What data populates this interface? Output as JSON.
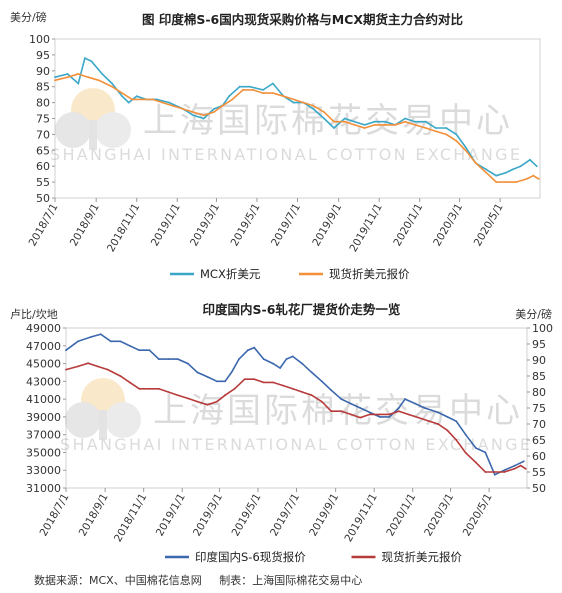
{
  "watermark": {
    "cn": "上海国际棉花交易中心",
    "en": "SHANGHAI INTERNATIONAL COTTON EXCHANGE"
  },
  "footer": {
    "source": "数据来源：MCX、中国棉花信息网",
    "maker": "制表：上海国际棉花交易中心"
  },
  "colors": {
    "blue": "#3aa7c8",
    "orange": "#f2903a",
    "navy": "#3b67ad",
    "red": "#b83b3b"
  },
  "chart_data": [
    {
      "type": "line",
      "title": "图 印度棉S-6国内现货采购价格与MCX期货主力合约对比",
      "ylabel": "美分/磅",
      "ylim": [
        50,
        100
      ],
      "yticks": [
        50,
        55,
        60,
        65,
        70,
        75,
        80,
        85,
        90,
        95,
        100
      ],
      "xlim": [
        "2018-07-01",
        "2020-06-30"
      ],
      "xticks": [
        "2018/7/1",
        "2018/9/1",
        "2018/11/1",
        "2019/1/1",
        "2019/3/1",
        "2019/5/1",
        "2019/7/1",
        "2019/9/1",
        "2019/11/1",
        "2020/1/1",
        "2020/3/1",
        "2020/5/1"
      ],
      "legend_position": "bottom",
      "series": [
        {
          "name": "MCX折美元",
          "color": "#3aa7c8",
          "points": [
            [
              "2018-07-01",
              88
            ],
            [
              "2018-07-20",
              89
            ],
            [
              "2018-08-05",
              86
            ],
            [
              "2018-08-15",
              94
            ],
            [
              "2018-08-25",
              93
            ],
            [
              "2018-09-10",
              89
            ],
            [
              "2018-09-25",
              86
            ],
            [
              "2018-10-10",
              82
            ],
            [
              "2018-10-20",
              80
            ],
            [
              "2018-11-01",
              82
            ],
            [
              "2018-11-15",
              81
            ],
            [
              "2018-12-01",
              81
            ],
            [
              "2018-12-20",
              80
            ],
            [
              "2019-01-10",
              78
            ],
            [
              "2019-01-25",
              76
            ],
            [
              "2019-02-10",
              75
            ],
            [
              "2019-02-25",
              78
            ],
            [
              "2019-03-10",
              79
            ],
            [
              "2019-03-20",
              82
            ],
            [
              "2019-04-05",
              85
            ],
            [
              "2019-04-20",
              85
            ],
            [
              "2019-05-10",
              84
            ],
            [
              "2019-05-25",
              86
            ],
            [
              "2019-06-10",
              82
            ],
            [
              "2019-06-25",
              80
            ],
            [
              "2019-07-10",
              80
            ],
            [
              "2019-07-25",
              78
            ],
            [
              "2019-08-10",
              75
            ],
            [
              "2019-08-25",
              72
            ],
            [
              "2019-09-10",
              75
            ],
            [
              "2019-09-25",
              74
            ],
            [
              "2019-10-10",
              73
            ],
            [
              "2019-10-25",
              74
            ],
            [
              "2019-11-10",
              74
            ],
            [
              "2019-11-25",
              73
            ],
            [
              "2019-12-10",
              75
            ],
            [
              "2019-12-25",
              74
            ],
            [
              "2020-01-10",
              74
            ],
            [
              "2020-01-25",
              72
            ],
            [
              "2020-02-10",
              72
            ],
            [
              "2020-02-25",
              70
            ],
            [
              "2020-03-10",
              66
            ],
            [
              "2020-03-25",
              61
            ],
            [
              "2020-04-10",
              59
            ],
            [
              "2020-04-25",
              57
            ],
            [
              "2020-05-10",
              58
            ],
            [
              "2020-05-20",
              59
            ],
            [
              "2020-06-01",
              60
            ],
            [
              "2020-06-15",
              62
            ],
            [
              "2020-06-25",
              60
            ]
          ]
        },
        {
          "name": "现货折美元报价",
          "color": "#f2903a",
          "points": [
            [
              "2018-07-01",
              87
            ],
            [
              "2018-07-20",
              88
            ],
            [
              "2018-08-05",
              89
            ],
            [
              "2018-08-20",
              88
            ],
            [
              "2018-09-05",
              87
            ],
            [
              "2018-09-25",
              85
            ],
            [
              "2018-10-10",
              83
            ],
            [
              "2018-10-25",
              81
            ],
            [
              "2018-11-10",
              81
            ],
            [
              "2018-11-25",
              81
            ],
            [
              "2018-12-10",
              80
            ],
            [
              "2018-12-25",
              79
            ],
            [
              "2019-01-10",
              78
            ],
            [
              "2019-01-25",
              77
            ],
            [
              "2019-02-10",
              76
            ],
            [
              "2019-02-25",
              77
            ],
            [
              "2019-03-10",
              79
            ],
            [
              "2019-03-25",
              81
            ],
            [
              "2019-04-10",
              84
            ],
            [
              "2019-04-25",
              84
            ],
            [
              "2019-05-10",
              83
            ],
            [
              "2019-05-25",
              83
            ],
            [
              "2019-06-10",
              82
            ],
            [
              "2019-06-25",
              81
            ],
            [
              "2019-07-10",
              80
            ],
            [
              "2019-07-25",
              79
            ],
            [
              "2019-08-10",
              77
            ],
            [
              "2019-08-25",
              74
            ],
            [
              "2019-09-10",
              74
            ],
            [
              "2019-09-25",
              73
            ],
            [
              "2019-10-10",
              72
            ],
            [
              "2019-10-25",
              73
            ],
            [
              "2019-11-10",
              73
            ],
            [
              "2019-11-25",
              73
            ],
            [
              "2019-12-10",
              74
            ],
            [
              "2019-12-25",
              73
            ],
            [
              "2020-01-10",
              72
            ],
            [
              "2020-01-25",
              71
            ],
            [
              "2020-02-10",
              70
            ],
            [
              "2020-02-25",
              68
            ],
            [
              "2020-03-10",
              65
            ],
            [
              "2020-03-25",
              61
            ],
            [
              "2020-04-10",
              58
            ],
            [
              "2020-04-25",
              55
            ],
            [
              "2020-05-10",
              55
            ],
            [
              "2020-05-25",
              55
            ],
            [
              "2020-06-10",
              56
            ],
            [
              "2020-06-20",
              57
            ],
            [
              "2020-06-28",
              56
            ]
          ]
        }
      ]
    },
    {
      "type": "line",
      "title": "印度国内S-6轧花厂提货价走势一览",
      "ylabel_left": "卢比/坎地",
      "ylabel_right": "美分/磅",
      "ylim_left": [
        31000,
        49000
      ],
      "yticks_left": [
        31000,
        33000,
        35000,
        37000,
        39000,
        41000,
        43000,
        45000,
        47000,
        49000
      ],
      "ylim_right": [
        50,
        100
      ],
      "yticks_right": [
        50,
        55,
        60,
        65,
        70,
        75,
        80,
        85,
        90,
        95,
        100
      ],
      "xlim": [
        "2018-07-01",
        "2020-06-30"
      ],
      "xticks": [
        "2018/7/1",
        "2018/9/1",
        "2018/11/1",
        "2019/1/1",
        "2019/3/1",
        "2019/5/1",
        "2019/7/1",
        "2019/9/1",
        "2019/11/1",
        "2020/1/1",
        "2020/3/1",
        "2020/5/1"
      ],
      "legend_position": "bottom",
      "series": [
        {
          "name": "印度国内S-6现货报价",
          "axis": "left",
          "color": "#3b67ad",
          "points": [
            [
              "2018-07-01",
              46500
            ],
            [
              "2018-07-20",
              47500
            ],
            [
              "2018-08-10",
              48000
            ],
            [
              "2018-08-25",
              48300
            ],
            [
              "2018-09-10",
              47500
            ],
            [
              "2018-09-25",
              47500
            ],
            [
              "2018-10-10",
              47000
            ],
            [
              "2018-10-25",
              46500
            ],
            [
              "2018-11-10",
              46500
            ],
            [
              "2018-11-25",
              45500
            ],
            [
              "2018-12-10",
              45500
            ],
            [
              "2018-12-25",
              45500
            ],
            [
              "2019-01-10",
              45000
            ],
            [
              "2019-01-25",
              44000
            ],
            [
              "2019-02-10",
              43500
            ],
            [
              "2019-02-25",
              43000
            ],
            [
              "2019-03-10",
              43000
            ],
            [
              "2019-03-20",
              44000
            ],
            [
              "2019-04-01",
              45500
            ],
            [
              "2019-04-15",
              46500
            ],
            [
              "2019-04-25",
              46800
            ],
            [
              "2019-05-10",
              45500
            ],
            [
              "2019-05-25",
              45000
            ],
            [
              "2019-06-05",
              44500
            ],
            [
              "2019-06-15",
              45500
            ],
            [
              "2019-06-25",
              45800
            ],
            [
              "2019-07-10",
              45000
            ],
            [
              "2019-07-25",
              44000
            ],
            [
              "2019-08-10",
              43000
            ],
            [
              "2019-08-25",
              42000
            ],
            [
              "2019-09-10",
              41000
            ],
            [
              "2019-09-25",
              40500
            ],
            [
              "2019-10-10",
              40000
            ],
            [
              "2019-10-25",
              39500
            ],
            [
              "2019-11-10",
              39000
            ],
            [
              "2019-11-25",
              39000
            ],
            [
              "2019-12-10",
              40000
            ],
            [
              "2019-12-20",
              41000
            ],
            [
              "2020-01-05",
              40500
            ],
            [
              "2020-01-20",
              40000
            ],
            [
              "2020-02-10",
              39500
            ],
            [
              "2020-02-25",
              39000
            ],
            [
              "2020-03-10",
              38500
            ],
            [
              "2020-03-25",
              37000
            ],
            [
              "2020-04-10",
              35500
            ],
            [
              "2020-04-25",
              35000
            ],
            [
              "2020-05-10",
              32500
            ],
            [
              "2020-05-25",
              33000
            ],
            [
              "2020-06-10",
              33500
            ],
            [
              "2020-06-25",
              34000
            ]
          ]
        },
        {
          "name": "现货折美元报价",
          "axis": "right",
          "color": "#b83b3b",
          "points": [
            [
              "2018-07-01",
              87
            ],
            [
              "2018-07-20",
              88
            ],
            [
              "2018-08-05",
              89
            ],
            [
              "2018-08-20",
              88
            ],
            [
              "2018-09-05",
              87
            ],
            [
              "2018-09-25",
              85
            ],
            [
              "2018-10-10",
              83
            ],
            [
              "2018-10-25",
              81
            ],
            [
              "2018-11-10",
              81
            ],
            [
              "2018-11-25",
              81
            ],
            [
              "2018-12-10",
              80
            ],
            [
              "2018-12-25",
              79
            ],
            [
              "2019-01-10",
              78
            ],
            [
              "2019-01-25",
              77
            ],
            [
              "2019-02-10",
              76
            ],
            [
              "2019-02-25",
              77
            ],
            [
              "2019-03-10",
              79
            ],
            [
              "2019-03-25",
              81
            ],
            [
              "2019-04-10",
              84
            ],
            [
              "2019-04-25",
              84
            ],
            [
              "2019-05-10",
              83
            ],
            [
              "2019-05-25",
              83
            ],
            [
              "2019-06-10",
              82
            ],
            [
              "2019-06-25",
              81
            ],
            [
              "2019-07-10",
              80
            ],
            [
              "2019-07-25",
              79
            ],
            [
              "2019-08-10",
              77
            ],
            [
              "2019-08-25",
              74
            ],
            [
              "2019-09-10",
              74
            ],
            [
              "2019-09-25",
              73
            ],
            [
              "2019-10-10",
              72
            ],
            [
              "2019-10-25",
              73
            ],
            [
              "2019-11-10",
              73
            ],
            [
              "2019-11-25",
              73
            ],
            [
              "2019-12-10",
              74
            ],
            [
              "2019-12-25",
              73
            ],
            [
              "2020-01-10",
              72
            ],
            [
              "2020-01-25",
              71
            ],
            [
              "2020-02-10",
              70
            ],
            [
              "2020-02-25",
              68
            ],
            [
              "2020-03-10",
              65
            ],
            [
              "2020-03-25",
              61
            ],
            [
              "2020-04-10",
              58
            ],
            [
              "2020-04-25",
              55
            ],
            [
              "2020-05-10",
              55
            ],
            [
              "2020-05-25",
              55
            ],
            [
              "2020-06-10",
              56
            ],
            [
              "2020-06-20",
              57
            ],
            [
              "2020-06-28",
              56
            ]
          ]
        }
      ]
    }
  ]
}
